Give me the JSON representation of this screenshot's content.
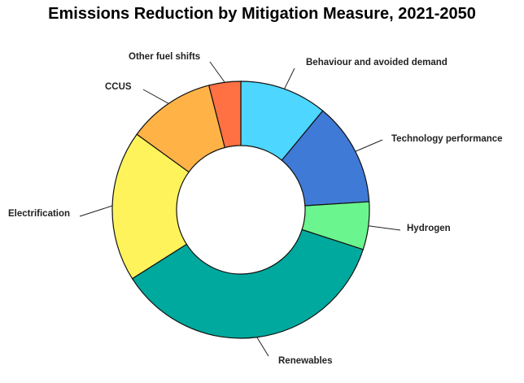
{
  "chart_data": {
    "type": "pie",
    "donut": true,
    "title": "Emissions Reduction by Mitigation Measure, 2021-2050",
    "slices": [
      {
        "label": "Behaviour and avoided demand",
        "value": 11,
        "color": "#4DD6FF"
      },
      {
        "label": "Technology performance",
        "value": 13,
        "color": "#3F7AD6"
      },
      {
        "label": "Hydrogen",
        "value": 6,
        "color": "#6BF58E"
      },
      {
        "label": "Renewables",
        "value": 36,
        "color": "#00A99D"
      },
      {
        "label": "Electrification",
        "value": 19,
        "color": "#FFF35C"
      },
      {
        "label": "CCUS",
        "value": 11,
        "color": "#FFB347"
      },
      {
        "label": "Other fuel shifts",
        "value": 4,
        "color": "#FF7043"
      }
    ],
    "legend": "none"
  }
}
